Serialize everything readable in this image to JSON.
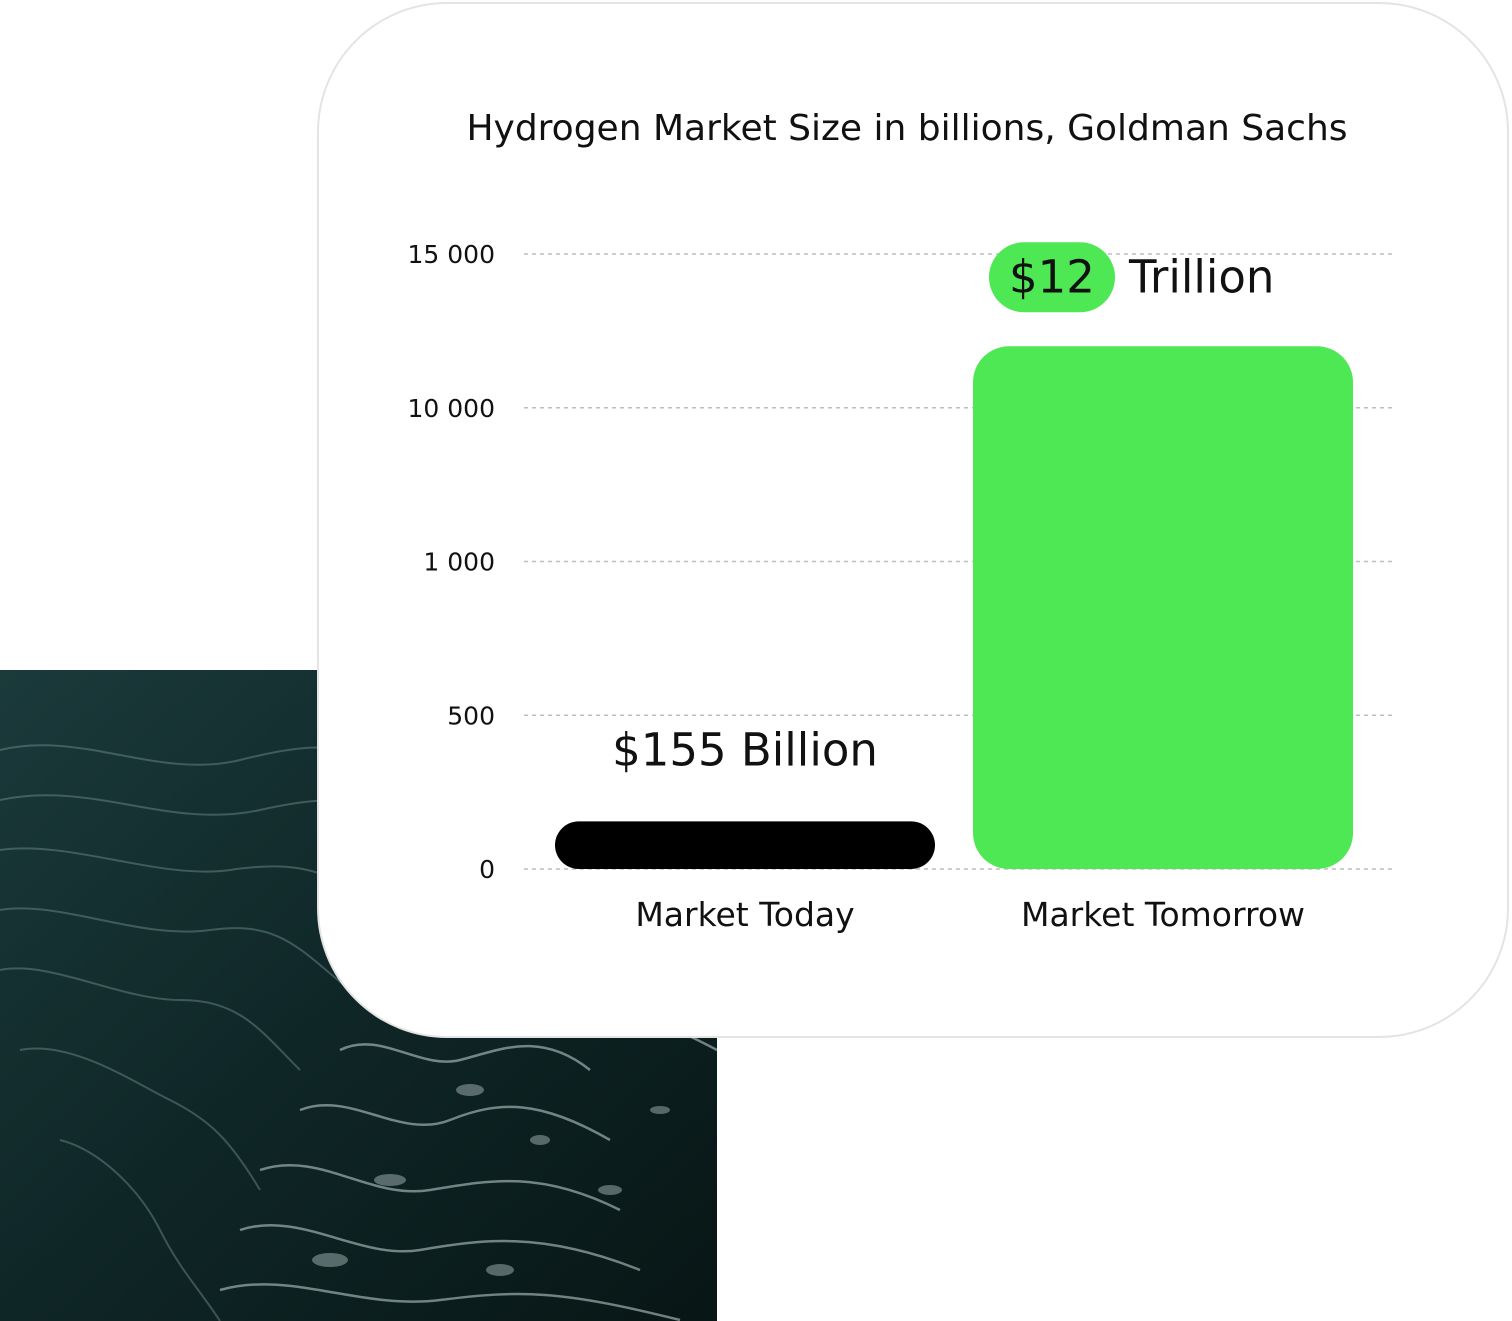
{
  "chart_data": {
    "type": "bar",
    "title": "Hydrogen Market Size in billions, Goldman Sachs",
    "xlabel": "",
    "ylabel": "",
    "categories": [
      "Market Today",
      "Market Tomorrow"
    ],
    "values": [
      155,
      12000
    ],
    "y_ticks": [
      "0",
      "500",
      "1 000",
      "10 000",
      "15 000"
    ],
    "y_tick_values": [
      0,
      500,
      1000,
      10000,
      15000
    ],
    "y_scale": "non-linear",
    "grid": true,
    "bar_colors": [
      "#000000",
      "#4fe855"
    ],
    "data_labels": [
      {
        "highlight": "",
        "text": "$155 Billion"
      },
      {
        "highlight": "$12",
        "text": "Trillion"
      }
    ],
    "highlight_color": "#4fe855"
  }
}
